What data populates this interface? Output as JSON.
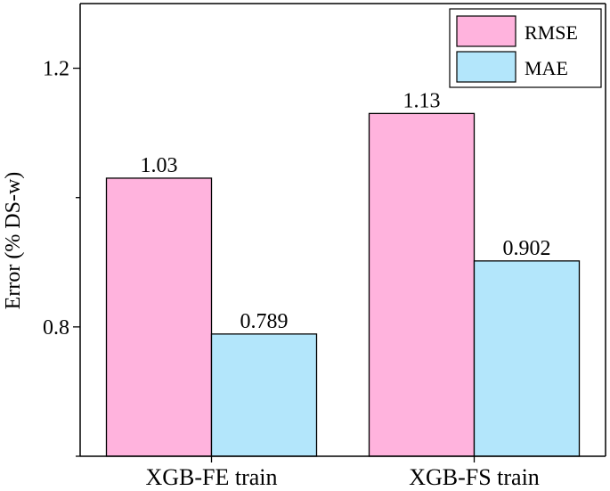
{
  "chart_data": {
    "type": "bar",
    "categories": [
      "XGB-FE train",
      "XGB-FS train"
    ],
    "series": [
      {
        "name": "RMSE",
        "values": [
          1.03,
          1.13
        ],
        "value_labels": [
          "1.03",
          "1.13"
        ],
        "color": "#ffb3dd"
      },
      {
        "name": "MAE",
        "values": [
          0.789,
          0.902
        ],
        "value_labels": [
          "0.789",
          "0.902"
        ],
        "color": "#b3e6fb"
      }
    ],
    "title": "",
    "xlabel": "",
    "ylabel": "Error (% DS-w)",
    "ylim": [
      0.6,
      1.3
    ],
    "yticks": [
      0.8,
      1.2
    ],
    "ytick_labels": [
      "0.8",
      "1.2"
    ],
    "grid": false,
    "legend": "top-right"
  }
}
